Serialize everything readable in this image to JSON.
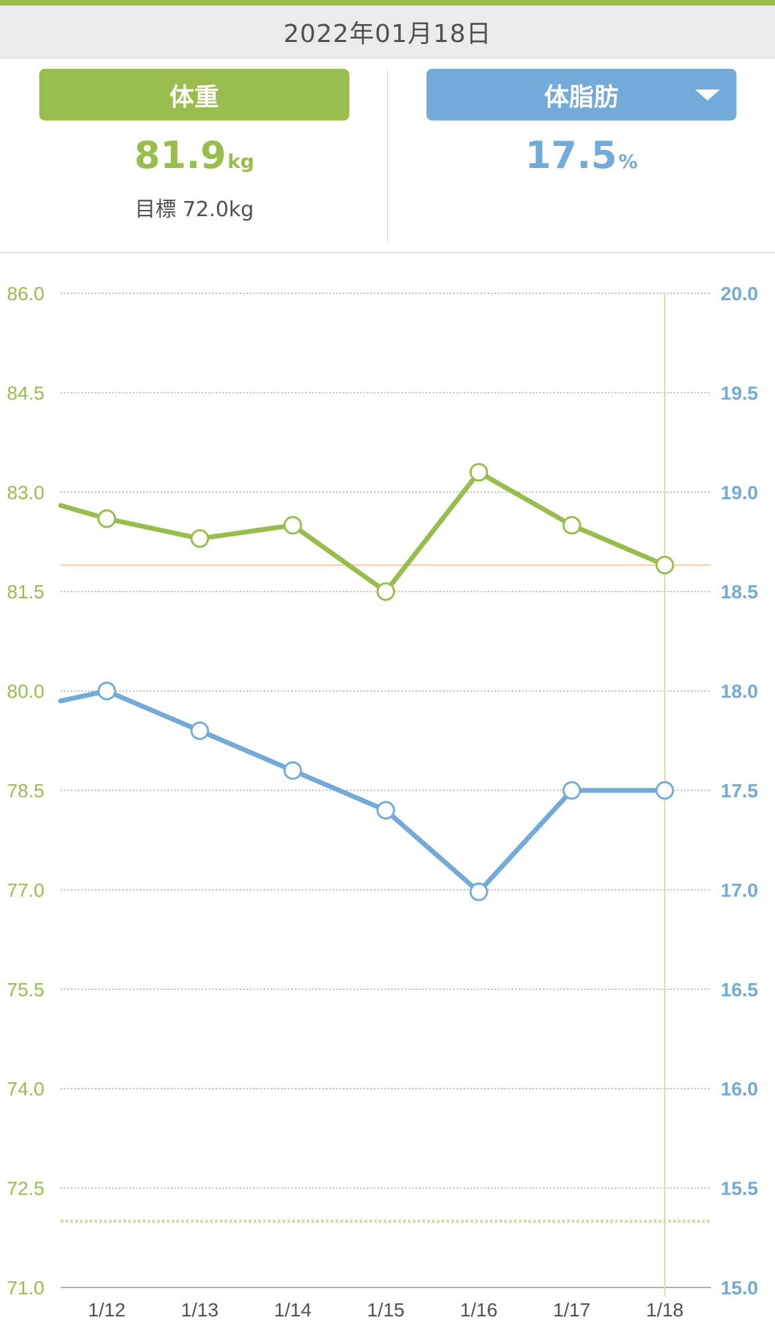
{
  "header": {
    "date": "2022年01月18日"
  },
  "left_panel": {
    "button_label": "体重",
    "value": "81.9",
    "unit": "kg",
    "goal_text": "目標 72.0kg"
  },
  "right_panel": {
    "button_label": "体脂肪",
    "value": "17.5",
    "unit": "%",
    "dropdown_icon": "caret-down-icon"
  },
  "colors": {
    "weight": "#99bd4d",
    "body_fat": "#72abd9",
    "reference_line": "#f5c9a0",
    "cursor_line": "#e6d9a8",
    "goal_line": "#d6e0a0"
  },
  "chart_data": {
    "type": "line",
    "categories": [
      "1/12",
      "1/13",
      "1/14",
      "1/15",
      "1/16",
      "1/17",
      "1/18"
    ],
    "left_axis": {
      "ylim": [
        71.0,
        86.0
      ],
      "ticks": [
        "86.0",
        "84.5",
        "83.0",
        "81.5",
        "80.0",
        "78.5",
        "77.0",
        "75.5",
        "74.0",
        "72.5",
        "71.0"
      ]
    },
    "right_axis": {
      "ylim": [
        15.0,
        20.0
      ],
      "ticks": [
        "20.0",
        "19.5",
        "19.0",
        "18.5",
        "18.0",
        "17.5",
        "17.0",
        "16.5",
        "16.0",
        "15.5",
        "15.0"
      ]
    },
    "series": [
      {
        "axis": "left",
        "values": [
          82.6,
          82.3,
          82.5,
          81.5,
          83.3,
          82.5,
          81.9
        ],
        "lead_in_value": 82.8
      },
      {
        "axis": "right",
        "values": [
          18.0,
          17.8,
          17.6,
          17.4,
          16.99,
          17.5,
          17.5
        ],
        "lead_in_value": 17.95
      }
    ],
    "current_value_line": 81.9,
    "goal_line": 72.0,
    "selected_category": "1/18",
    "grid": true
  }
}
